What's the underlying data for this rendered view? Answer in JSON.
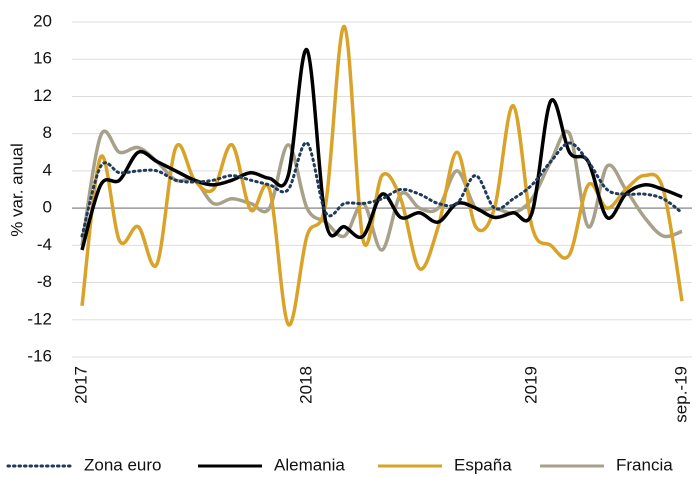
{
  "chart_data": {
    "type": "line",
    "y_label": "% var. anual",
    "categories": [
      "2017",
      null,
      null,
      null,
      null,
      null,
      null,
      null,
      null,
      null,
      null,
      null,
      "2018",
      null,
      null,
      null,
      null,
      null,
      null,
      null,
      null,
      null,
      null,
      null,
      "2019",
      null,
      null,
      null,
      null,
      null,
      null,
      null,
      "sep.-19"
    ],
    "series": [
      {
        "name": "Zona euro",
        "color": "#1f3a5a",
        "dashed": true,
        "values": [
          -3,
          4.5,
          3.8,
          4,
          4,
          3,
          2.8,
          3,
          3.5,
          3,
          2.5,
          2,
          7,
          -0.5,
          0.5,
          0.5,
          1,
          2,
          1.5,
          0.5,
          0.5,
          3.5,
          0,
          1,
          2.5,
          5,
          7,
          5,
          2,
          1.5,
          1.5,
          1,
          -0.5
        ]
      },
      {
        "name": "Alemania",
        "color": "#000000",
        "values": [
          -4.5,
          2.5,
          3,
          6,
          5,
          4,
          3,
          2.5,
          3,
          3.8,
          3.2,
          3.5,
          17,
          -1.5,
          -2,
          -3,
          1.5,
          -1,
          -0.5,
          -1.5,
          0.5,
          0,
          -1,
          -0.5,
          -0.5,
          11.5,
          6,
          5,
          -1,
          1.5,
          2.5,
          2,
          1.2
        ]
      },
      {
        "name": "España",
        "color": "#d9a32a",
        "values": [
          -10.5,
          5.5,
          -3.5,
          -2,
          -6,
          6.5,
          3,
          2,
          6.8,
          -0.2,
          2,
          -12.5,
          -3,
          0.5,
          19.5,
          -3.5,
          3.5,
          1,
          -6.5,
          -2,
          6,
          -2,
          0,
          11,
          -2,
          -4,
          -5,
          2.5,
          0,
          2,
          3.5,
          2,
          -10
        ]
      },
      {
        "name": "Francia",
        "color": "#a8a18a",
        "values": [
          -4,
          7.8,
          6,
          6.5,
          5,
          3,
          3,
          0.5,
          1,
          0.5,
          0,
          6.8,
          0,
          -1.5,
          -3,
          0.5,
          -4.5,
          1.5,
          0,
          0,
          4,
          0,
          0,
          -0.5,
          1,
          5,
          8,
          -2,
          4.5,
          2,
          -1,
          -3,
          -2.5
        ]
      }
    ],
    "ylim": [
      -16,
      20
    ],
    "yticks": [
      -16,
      -12,
      -8,
      -4,
      0,
      4,
      8,
      12,
      16,
      20
    ],
    "grid": true
  }
}
